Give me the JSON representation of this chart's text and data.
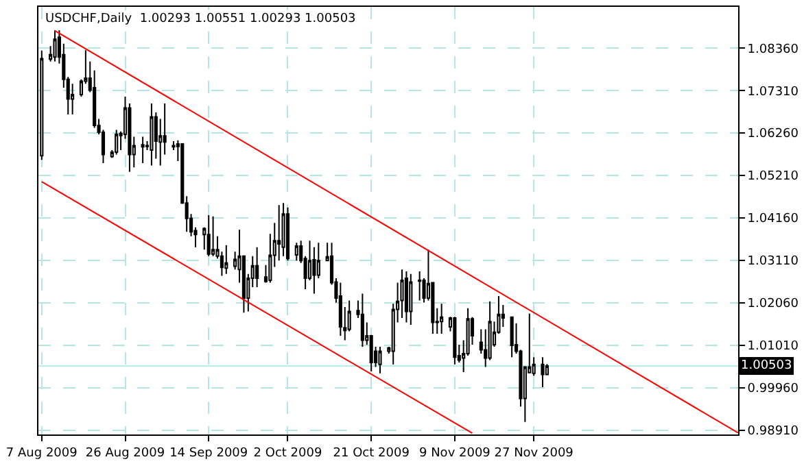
{
  "chart_data": {
    "type": "candlestick",
    "title": "USDCHF,Daily  1.00293 1.00551 1.00293 1.00503",
    "color": "#000000",
    "x": [
      "2009-08-07",
      "2009-08-09",
      "2009-08-10",
      "2009-08-11",
      "2009-08-12",
      "2009-08-13",
      "2009-08-14",
      "2009-08-16",
      "2009-08-17",
      "2009-08-18",
      "2009-08-19",
      "2009-08-20",
      "2009-08-21",
      "2009-08-23",
      "2009-08-24",
      "2009-08-25",
      "2009-08-26",
      "2009-08-27",
      "2009-08-28",
      "2009-08-30",
      "2009-08-31",
      "2009-09-01",
      "2009-09-02",
      "2009-09-03",
      "2009-09-04",
      "2009-09-06",
      "2009-09-07",
      "2009-09-08",
      "2009-09-09",
      "2009-09-10",
      "2009-09-11",
      "2009-09-13",
      "2009-09-14",
      "2009-09-15",
      "2009-09-16",
      "2009-09-17",
      "2009-09-18",
      "2009-09-20",
      "2009-09-21",
      "2009-09-22",
      "2009-09-23",
      "2009-09-24",
      "2009-09-25",
      "2009-09-27",
      "2009-09-28",
      "2009-09-29",
      "2009-09-30",
      "2009-10-01",
      "2009-10-02",
      "2009-10-04",
      "2009-10-05",
      "2009-10-06",
      "2009-10-07",
      "2009-10-08",
      "2009-10-09",
      "2009-10-11",
      "2009-10-12",
      "2009-10-13",
      "2009-10-14",
      "2009-10-15",
      "2009-10-16",
      "2009-10-18",
      "2009-10-19",
      "2009-10-20",
      "2009-10-21",
      "2009-10-22",
      "2009-10-23",
      "2009-10-25",
      "2009-10-26",
      "2009-10-27",
      "2009-10-28",
      "2009-10-29",
      "2009-10-30",
      "2009-11-01",
      "2009-11-02",
      "2009-11-03",
      "2009-11-04",
      "2009-11-05",
      "2009-11-06",
      "2009-11-08",
      "2009-11-09",
      "2009-11-10",
      "2009-11-11",
      "2009-11-12",
      "2009-11-13",
      "2009-11-15",
      "2009-11-16",
      "2009-11-17",
      "2009-11-18",
      "2009-11-19",
      "2009-11-20",
      "2009-11-22",
      "2009-11-23",
      "2009-11-24",
      "2009-11-25",
      "2009-11-26",
      "2009-11-27",
      "2009-11-29",
      "2009-11-30"
    ],
    "ohlc": [
      [
        1.057,
        1.083,
        1.056,
        1.081
      ],
      [
        1.0809,
        1.0841,
        1.0803,
        1.082
      ],
      [
        1.0814,
        1.088,
        1.0803,
        1.0858
      ],
      [
        1.0863,
        1.088,
        1.0798,
        1.0814
      ],
      [
        1.082,
        1.0847,
        1.0738,
        1.0759
      ],
      [
        1.0759,
        1.0765,
        1.0672,
        1.071
      ],
      [
        1.071,
        1.0748,
        1.0672,
        1.0721
      ],
      [
        1.0721,
        1.0759,
        1.0716,
        1.0754
      ],
      [
        1.0754,
        1.0831,
        1.0748,
        1.0762
      ],
      [
        1.0762,
        1.0803,
        1.0727,
        1.0732
      ],
      [
        1.0738,
        1.0781,
        1.0639,
        1.0645
      ],
      [
        1.0645,
        1.0661,
        1.0623,
        1.0628
      ],
      [
        1.0628,
        1.0634,
        1.0552,
        1.0573
      ],
      [
        1.0568,
        1.0584,
        1.0565,
        1.0579
      ],
      [
        1.0579,
        1.0634,
        1.0573,
        1.0623
      ],
      [
        1.062,
        1.063,
        1.0584,
        1.0625
      ],
      [
        1.0623,
        1.0716,
        1.0612,
        1.0688
      ],
      [
        1.0688,
        1.0699,
        1.053,
        1.0573
      ],
      [
        1.0573,
        1.0617,
        1.0541,
        1.0595
      ],
      [
        1.0592,
        1.0617,
        1.0552,
        1.0597
      ],
      [
        1.0595,
        1.0606,
        1.0584,
        1.0593
      ],
      [
        1.0584,
        1.0699,
        1.0546,
        1.0666
      ],
      [
        1.0666,
        1.0677,
        1.0563,
        1.0606
      ],
      [
        1.0604,
        1.0661,
        1.0546,
        1.0619
      ],
      [
        1.0619,
        1.0699,
        1.0573,
        1.0604
      ],
      [
        1.0595,
        1.0606,
        1.0584,
        1.0592
      ],
      [
        1.0593,
        1.0608,
        1.0557,
        1.0599
      ],
      [
        1.0599,
        1.0601,
        1.0451,
        1.0453
      ],
      [
        1.0453,
        1.047,
        1.0382,
        1.0415
      ],
      [
        1.0415,
        1.0426,
        1.0371,
        1.0382
      ],
      [
        1.0385,
        1.0393,
        1.0344,
        1.0375
      ],
      [
        1.0375,
        1.0393,
        1.0338,
        1.039
      ],
      [
        1.0375,
        1.0423,
        1.0322,
        1.0327
      ],
      [
        1.0327,
        1.042,
        1.0322,
        1.0338
      ],
      [
        1.0322,
        1.0371,
        1.0316,
        1.0338
      ],
      [
        1.0322,
        1.0333,
        1.0273,
        1.0294
      ],
      [
        1.0292,
        1.0349,
        1.0278,
        1.0305
      ],
      [
        1.0297,
        1.0333,
        1.0289,
        1.0314
      ],
      [
        1.0289,
        1.0387,
        1.0256,
        1.0322
      ],
      [
        1.0322,
        1.0324,
        1.0182,
        1.0218
      ],
      [
        1.0218,
        1.0278,
        1.0185,
        1.0267
      ],
      [
        1.0267,
        1.0322,
        1.0245,
        1.0298
      ],
      [
        1.0298,
        1.0344,
        1.0245,
        1.0267
      ],
      [
        1.027,
        1.03,
        1.0256,
        1.0259
      ],
      [
        1.0262,
        1.0377,
        1.0256,
        1.0324
      ],
      [
        1.0324,
        1.0404,
        1.0295,
        1.036
      ],
      [
        1.036,
        1.0448,
        1.0311,
        1.0352
      ],
      [
        1.0344,
        1.0453,
        1.0322,
        1.0426
      ],
      [
        1.0426,
        1.0442,
        1.0311,
        1.0316
      ],
      [
        1.0325,
        1.0355,
        1.0311,
        1.0347
      ],
      [
        1.0347,
        1.036,
        1.0305,
        1.0311
      ],
      [
        1.0316,
        1.0322,
        1.024,
        1.0267
      ],
      [
        1.0267,
        1.036,
        1.0262,
        1.0311
      ],
      [
        1.0313,
        1.0344,
        1.0229,
        1.0275
      ],
      [
        1.0275,
        1.0355,
        1.0267,
        1.0311
      ],
      [
        1.0311,
        1.0355,
        1.0309,
        1.032
      ],
      [
        1.0322,
        1.0355,
        1.0251,
        1.0256
      ],
      [
        1.0258,
        1.0267,
        1.0207,
        1.0218
      ],
      [
        1.0223,
        1.0256,
        1.0125,
        1.0147
      ],
      [
        1.0145,
        1.0196,
        1.0114,
        1.0138
      ],
      [
        1.0141,
        1.0212,
        1.0136,
        1.0185
      ],
      [
        1.0187,
        1.0212,
        1.0169,
        1.0178
      ],
      [
        1.0178,
        1.0229,
        1.0098,
        1.0114
      ],
      [
        1.0114,
        1.0158,
        1.0103,
        1.0125
      ],
      [
        1.0125,
        1.0127,
        1.0037,
        1.0059
      ],
      [
        1.0087,
        1.0098,
        1.0048,
        1.0059
      ],
      [
        1.0054,
        1.0098,
        1.0032,
        1.0087
      ],
      [
        1.0087,
        1.0098,
        1.0081,
        1.0095
      ],
      [
        1.0087,
        1.0204,
        1.0054,
        1.019
      ],
      [
        1.019,
        1.0256,
        1.0158,
        1.021
      ],
      [
        1.0212,
        1.0289,
        1.0169,
        1.0262
      ],
      [
        1.0267,
        1.0284,
        1.0158,
        1.0185
      ],
      [
        1.0185,
        1.0278,
        1.0152,
        1.0258
      ],
      [
        1.0262,
        1.0284,
        1.0212,
        1.026
      ],
      [
        1.0262,
        1.0267,
        1.0207,
        1.0218
      ],
      [
        1.0218,
        1.0338,
        1.0212,
        1.0254
      ],
      [
        1.0256,
        1.0258,
        1.013,
        1.0158
      ],
      [
        1.016,
        1.0193,
        1.013,
        1.0158
      ],
      [
        1.016,
        1.0204,
        1.013,
        1.0171
      ],
      [
        1.0147,
        1.0172,
        1.0136,
        1.0169
      ],
      [
        1.0169,
        1.0172,
        1.0054,
        1.0072
      ],
      [
        1.0076,
        1.0103,
        1.0059,
        1.0065
      ],
      [
        1.007,
        1.0114,
        1.0035,
        1.0081
      ],
      [
        1.0081,
        1.0193,
        1.0076,
        1.0167
      ],
      [
        1.0167,
        1.0171,
        1.0103,
        1.0125
      ],
      [
        1.0109,
        1.0141,
        1.0081,
        1.009
      ],
      [
        1.009,
        1.0141,
        1.0048,
        1.007
      ],
      [
        1.007,
        1.021,
        1.0065,
        1.016
      ],
      [
        1.0103,
        1.016,
        1.0098,
        1.0134
      ],
      [
        1.0134,
        1.0223,
        1.013,
        1.0178
      ],
      [
        1.0178,
        1.0201,
        1.0147,
        1.0169
      ],
      [
        1.0171,
        1.0172,
        1.0072,
        1.0101
      ],
      [
        1.0103,
        1.0156,
        1.0081,
        1.0087
      ],
      [
        1.0087,
        1.009,
        0.995,
        0.997
      ],
      [
        0.997,
        1.005,
        0.9912,
        1.0048
      ],
      [
        1.0034,
        1.018,
        1.0032,
        1.0048
      ],
      [
        1.0032,
        1.0072,
        1.0026,
        1.0054
      ],
      [
        1.0054,
        1.0072,
        0.9998,
        1.0029
      ],
      [
        1.00293,
        1.00551,
        1.00293,
        1.00503
      ]
    ],
    "series": [
      {
        "type": "line",
        "color": "#ff0000",
        "x": [
          "2009-08-10",
          "2010-01-12T12:00"
        ],
        "values": [
          1.0879,
          0.9885
        ]
      },
      {
        "type": "line",
        "color": "#ff0000",
        "x": [
          "2009-08-07",
          "2009-11-13"
        ],
        "values": [
          1.0506,
          0.9884
        ]
      }
    ],
    "xlim": [
      "2009-08-06T06:00",
      "2010-01-12T12:00"
    ],
    "xticks": [
      {
        "value": "2009-08-07",
        "label": "7 Aug 2009"
      },
      {
        "value": "2009-08-26",
        "label": "26 Aug 2009"
      },
      {
        "value": "2009-09-14",
        "label": "14 Sep 2009"
      },
      {
        "value": "2009-10-02",
        "label": "2 Oct 2009"
      },
      {
        "value": "2009-10-21",
        "label": "21 Oct 2009"
      },
      {
        "value": "2009-11-09",
        "label": "9 Nov 2009"
      },
      {
        "value": "2009-11-27",
        "label": "27 Nov 2009"
      }
    ],
    "ylim": [
      0.9881,
      1.0938
    ],
    "yticks": [
      {
        "value": 1.0836,
        "label": "1.08360"
      },
      {
        "value": 1.0731,
        "label": "1.07310"
      },
      {
        "value": 1.0626,
        "label": "1.06260"
      },
      {
        "value": 1.0521,
        "label": "1.05210"
      },
      {
        "value": 1.0416,
        "label": "1.04160"
      },
      {
        "value": 1.0311,
        "label": "1.03110"
      },
      {
        "value": 1.0206,
        "label": "1.02060"
      },
      {
        "value": 1.0101,
        "label": "1.01010"
      },
      {
        "value": 0.9996,
        "label": "0.99960"
      },
      {
        "value": 0.9891,
        "label": "0.98910"
      }
    ],
    "grid": true,
    "ref_lines": [
      {
        "axis": "y",
        "value": 1.00503,
        "label": "1.00503",
        "color": "#b4f0f0"
      }
    ]
  }
}
